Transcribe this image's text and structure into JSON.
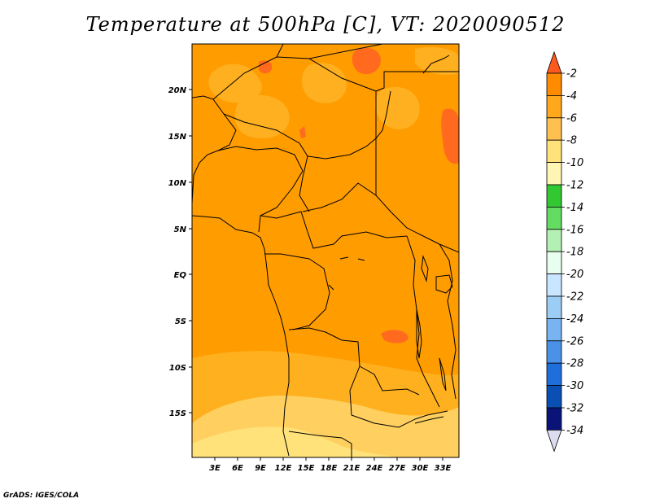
{
  "title": "Temperature at 500hPa [C], VT: 2020090512",
  "credit": "GrADS: IGES/COLA",
  "map": {
    "lat_labels": [
      "20N",
      "15N",
      "10N",
      "5N",
      "EQ",
      "5S",
      "10S",
      "15S"
    ],
    "lon_labels": [
      "3E",
      "6E",
      "9E",
      "12E",
      "15E",
      "18E",
      "21E",
      "24E",
      "27E",
      "30E",
      "33E"
    ]
  },
  "colorbar": {
    "labels": [
      "-2",
      "-4",
      "-6",
      "-8",
      "-10",
      "-12",
      "-14",
      "-16",
      "-18",
      "-20",
      "-22",
      "-24",
      "-26",
      "-28",
      "-30",
      "-32",
      "-34"
    ],
    "colors": [
      "#ff5a1e",
      "#ff8c00",
      "#ffa81c",
      "#ffc050",
      "#ffe27a",
      "#fff6b4",
      "#32c832",
      "#64dc64",
      "#b4f0b4",
      "#e8fff0",
      "#c8e6ff",
      "#9ccdf5",
      "#78b4f0",
      "#4a92e6",
      "#1e6edc",
      "#0a50b4",
      "#0a1478",
      "#dcdcf0"
    ]
  }
}
